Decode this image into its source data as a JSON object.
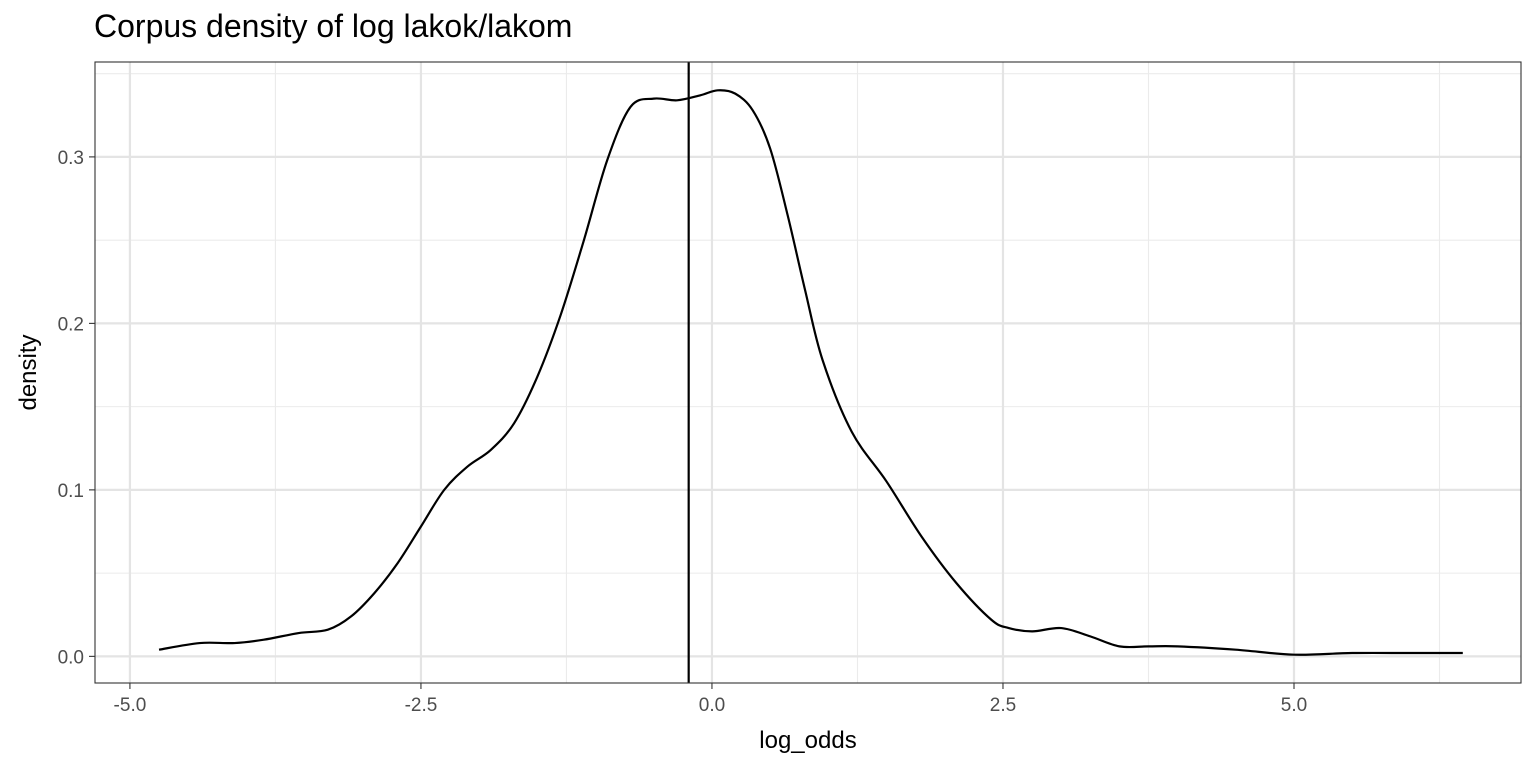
{
  "chart_data": {
    "type": "line",
    "title": "Corpus density of log lakok/lakom",
    "xlabel": "log_odds",
    "ylabel": "density",
    "xlim": [
      -5.3,
      6.95
    ],
    "ylim": [
      -0.016,
      0.357
    ],
    "x_ticks": [
      -5.0,
      -2.5,
      0.0,
      2.5,
      5.0
    ],
    "x_tick_labels": [
      "-5.0",
      "-2.5",
      "0.0",
      "2.5",
      "5.0"
    ],
    "y_ticks": [
      0.0,
      0.1,
      0.2,
      0.3
    ],
    "y_tick_labels": [
      "0.0",
      "0.1",
      "0.2",
      "0.3"
    ],
    "grid": true,
    "vertical_line_x": -0.2,
    "series": [
      {
        "x": [
          -4.75,
          -4.4,
          -4.1,
          -3.85,
          -3.55,
          -3.3,
          -3.1,
          -2.9,
          -2.7,
          -2.5,
          -2.3,
          -2.1,
          -1.9,
          -1.7,
          -1.5,
          -1.3,
          -1.1,
          -0.9,
          -0.7,
          -0.5,
          -0.3,
          -0.1,
          0.05,
          0.2,
          0.35,
          0.5,
          0.65,
          0.8,
          0.95,
          1.2,
          1.5,
          1.8,
          2.1,
          2.4,
          2.55,
          2.75,
          3.0,
          3.25,
          3.5,
          3.75,
          4.0,
          4.5,
          5.0,
          5.5,
          6.0,
          6.45
        ],
        "y": [
          0.004,
          0.008,
          0.008,
          0.01,
          0.014,
          0.016,
          0.024,
          0.038,
          0.056,
          0.078,
          0.1,
          0.114,
          0.124,
          0.14,
          0.168,
          0.205,
          0.25,
          0.298,
          0.33,
          0.335,
          0.334,
          0.337,
          0.34,
          0.338,
          0.328,
          0.305,
          0.265,
          0.22,
          0.178,
          0.135,
          0.105,
          0.072,
          0.044,
          0.022,
          0.017,
          0.015,
          0.017,
          0.012,
          0.006,
          0.006,
          0.006,
          0.004,
          0.001,
          0.002,
          0.002,
          0.002
        ]
      }
    ]
  }
}
